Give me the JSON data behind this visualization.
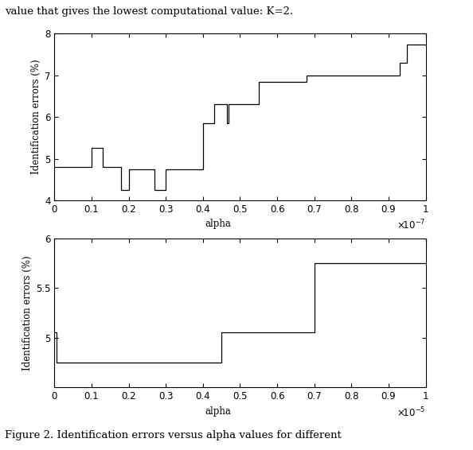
{
  "title_text": "value that gives the lowest computational value: K=2.",
  "caption": "Figure 2. Identification errors versus alpha values for different",
  "plot1": {
    "xlabel": "alpha",
    "ylabel": "Identification errors (%)",
    "xlim": [
      0,
      1
    ],
    "ylim": [
      4,
      8
    ],
    "yticks": [
      4,
      5,
      6,
      7,
      8
    ],
    "xticks": [
      0,
      0.1,
      0.2,
      0.3,
      0.4,
      0.5,
      0.6,
      0.7,
      0.8,
      0.9,
      1
    ],
    "x": [
      0,
      0.1,
      0.1,
      0.13,
      0.13,
      0.18,
      0.18,
      0.2,
      0.2,
      0.27,
      0.27,
      0.3,
      0.3,
      0.4,
      0.4,
      0.43,
      0.43,
      0.465,
      0.465,
      0.47,
      0.47,
      0.5,
      0.5,
      0.55,
      0.55,
      0.65,
      0.65,
      0.68,
      0.68,
      0.93,
      0.93,
      0.95,
      0.95,
      1.0
    ],
    "y": [
      4.8,
      4.8,
      5.25,
      5.25,
      4.8,
      4.8,
      4.25,
      4.25,
      4.75,
      4.75,
      4.25,
      4.25,
      4.75,
      4.75,
      5.85,
      5.85,
      6.3,
      6.3,
      5.85,
      5.85,
      6.3,
      6.3,
      6.3,
      6.3,
      6.85,
      6.85,
      6.85,
      6.85,
      7.0,
      7.0,
      7.3,
      7.3,
      7.75,
      7.75
    ]
  },
  "plot2": {
    "xlabel": "alpha",
    "ylabel": "Identification errors (%)",
    "xlim": [
      0,
      1
    ],
    "ylim": [
      4.5,
      6
    ],
    "yticks": [
      5,
      5.5,
      6
    ],
    "xticks": [
      0,
      0.1,
      0.2,
      0.3,
      0.4,
      0.5,
      0.6,
      0.7,
      0.8,
      0.9,
      1
    ],
    "x": [
      0,
      0.005,
      0.005,
      0.45,
      0.45,
      0.7,
      0.7,
      1.0
    ],
    "y": [
      5.05,
      5.05,
      4.75,
      4.75,
      5.05,
      5.05,
      5.75,
      5.75
    ]
  },
  "line_color": "#000000",
  "bg_color": "#ffffff",
  "font_size": 8.5,
  "title_font_size": 9.5
}
